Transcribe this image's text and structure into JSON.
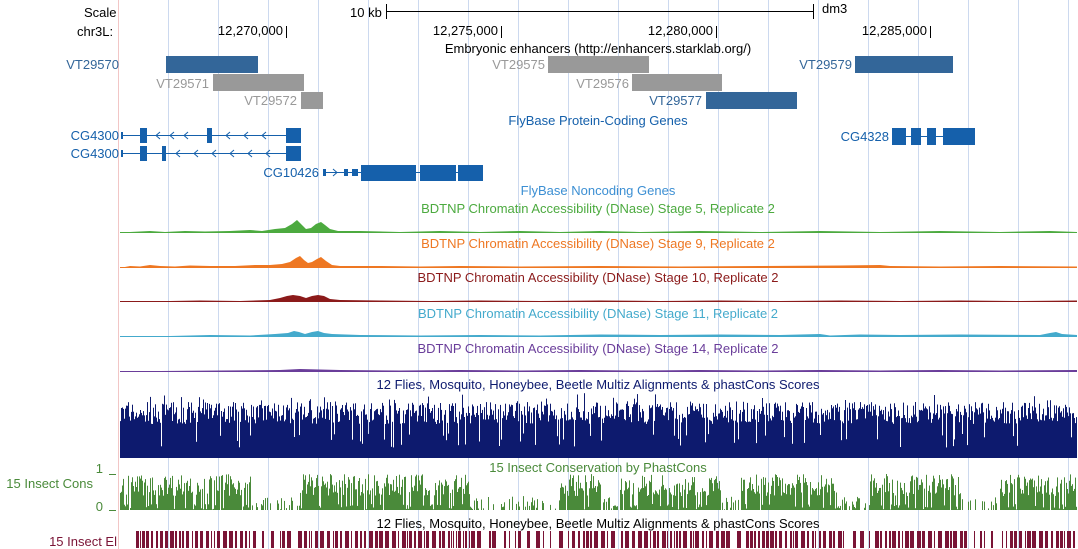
{
  "header": {
    "scale_label": "Scale",
    "scale_bar_label": "10 kb",
    "assembly": "dm3",
    "chrom_label": "chr3L:",
    "positions": [
      "12,270,000",
      "12,275,000",
      "12,280,000",
      "12,285,000"
    ]
  },
  "tracks": {
    "enhancers": {
      "title": "Embryonic enhancers (http://enhancers.starklab.org/)",
      "items": [
        {
          "name": "VT29570",
          "color": "#336699"
        },
        {
          "name": "VT29571",
          "color": "#999999"
        },
        {
          "name": "VT29572",
          "color": "#999999"
        },
        {
          "name": "VT29575",
          "color": "#999999"
        },
        {
          "name": "VT29576",
          "color": "#999999"
        },
        {
          "name": "VT29577",
          "color": "#336699"
        },
        {
          "name": "VT29579",
          "color": "#336699"
        }
      ]
    },
    "protein_genes": {
      "title": "FlyBase Protein-Coding Genes",
      "color": "#1560ab",
      "items": [
        {
          "name": "CG4300"
        },
        {
          "name": "CG4300"
        },
        {
          "name": "CG10426"
        },
        {
          "name": "CG4328"
        }
      ]
    },
    "noncoding": {
      "title": "FlyBase Noncoding Genes",
      "color": "#3c8fd3"
    },
    "dnase": [
      {
        "title": "BDTNP Chromatin Accessibility (DNase) Stage 5, Replicate 2",
        "color": "#4caa3f"
      },
      {
        "title": "BDTNP Chromatin Accessibility (DNase) Stage 9, Replicate 2",
        "color": "#ee7722"
      },
      {
        "title": "BDTNP Chromatin Accessibility (DNase) Stage 10, Replicate 2",
        "color": "#8b1a1a"
      },
      {
        "title": "BDTNP Chromatin Accessibility (DNase) Stage 11, Replicate 2",
        "color": "#44aacc"
      },
      {
        "title": "BDTNP Chromatin Accessibility (DNase) Stage 14, Replicate 2",
        "color": "#6a3d9a"
      }
    ],
    "multiz": {
      "title": "12 Flies, Mosquito, Honeybee, Beetle Multiz Alignments & phastCons Scores",
      "color": "#0d1a6e"
    },
    "phastcons": {
      "title": "15 Insect Conservation by PhastCons",
      "side_label": "15 Insect Cons",
      "axis_max": "1",
      "axis_min": "0",
      "color": "#4a8a3a"
    },
    "elements": {
      "title": "12 Flies, Mosquito, Honeybee, Beetle Multiz Alignments & phastCons Scores",
      "side_label": "15 Insect El",
      "color": "#7a1436"
    }
  }
}
